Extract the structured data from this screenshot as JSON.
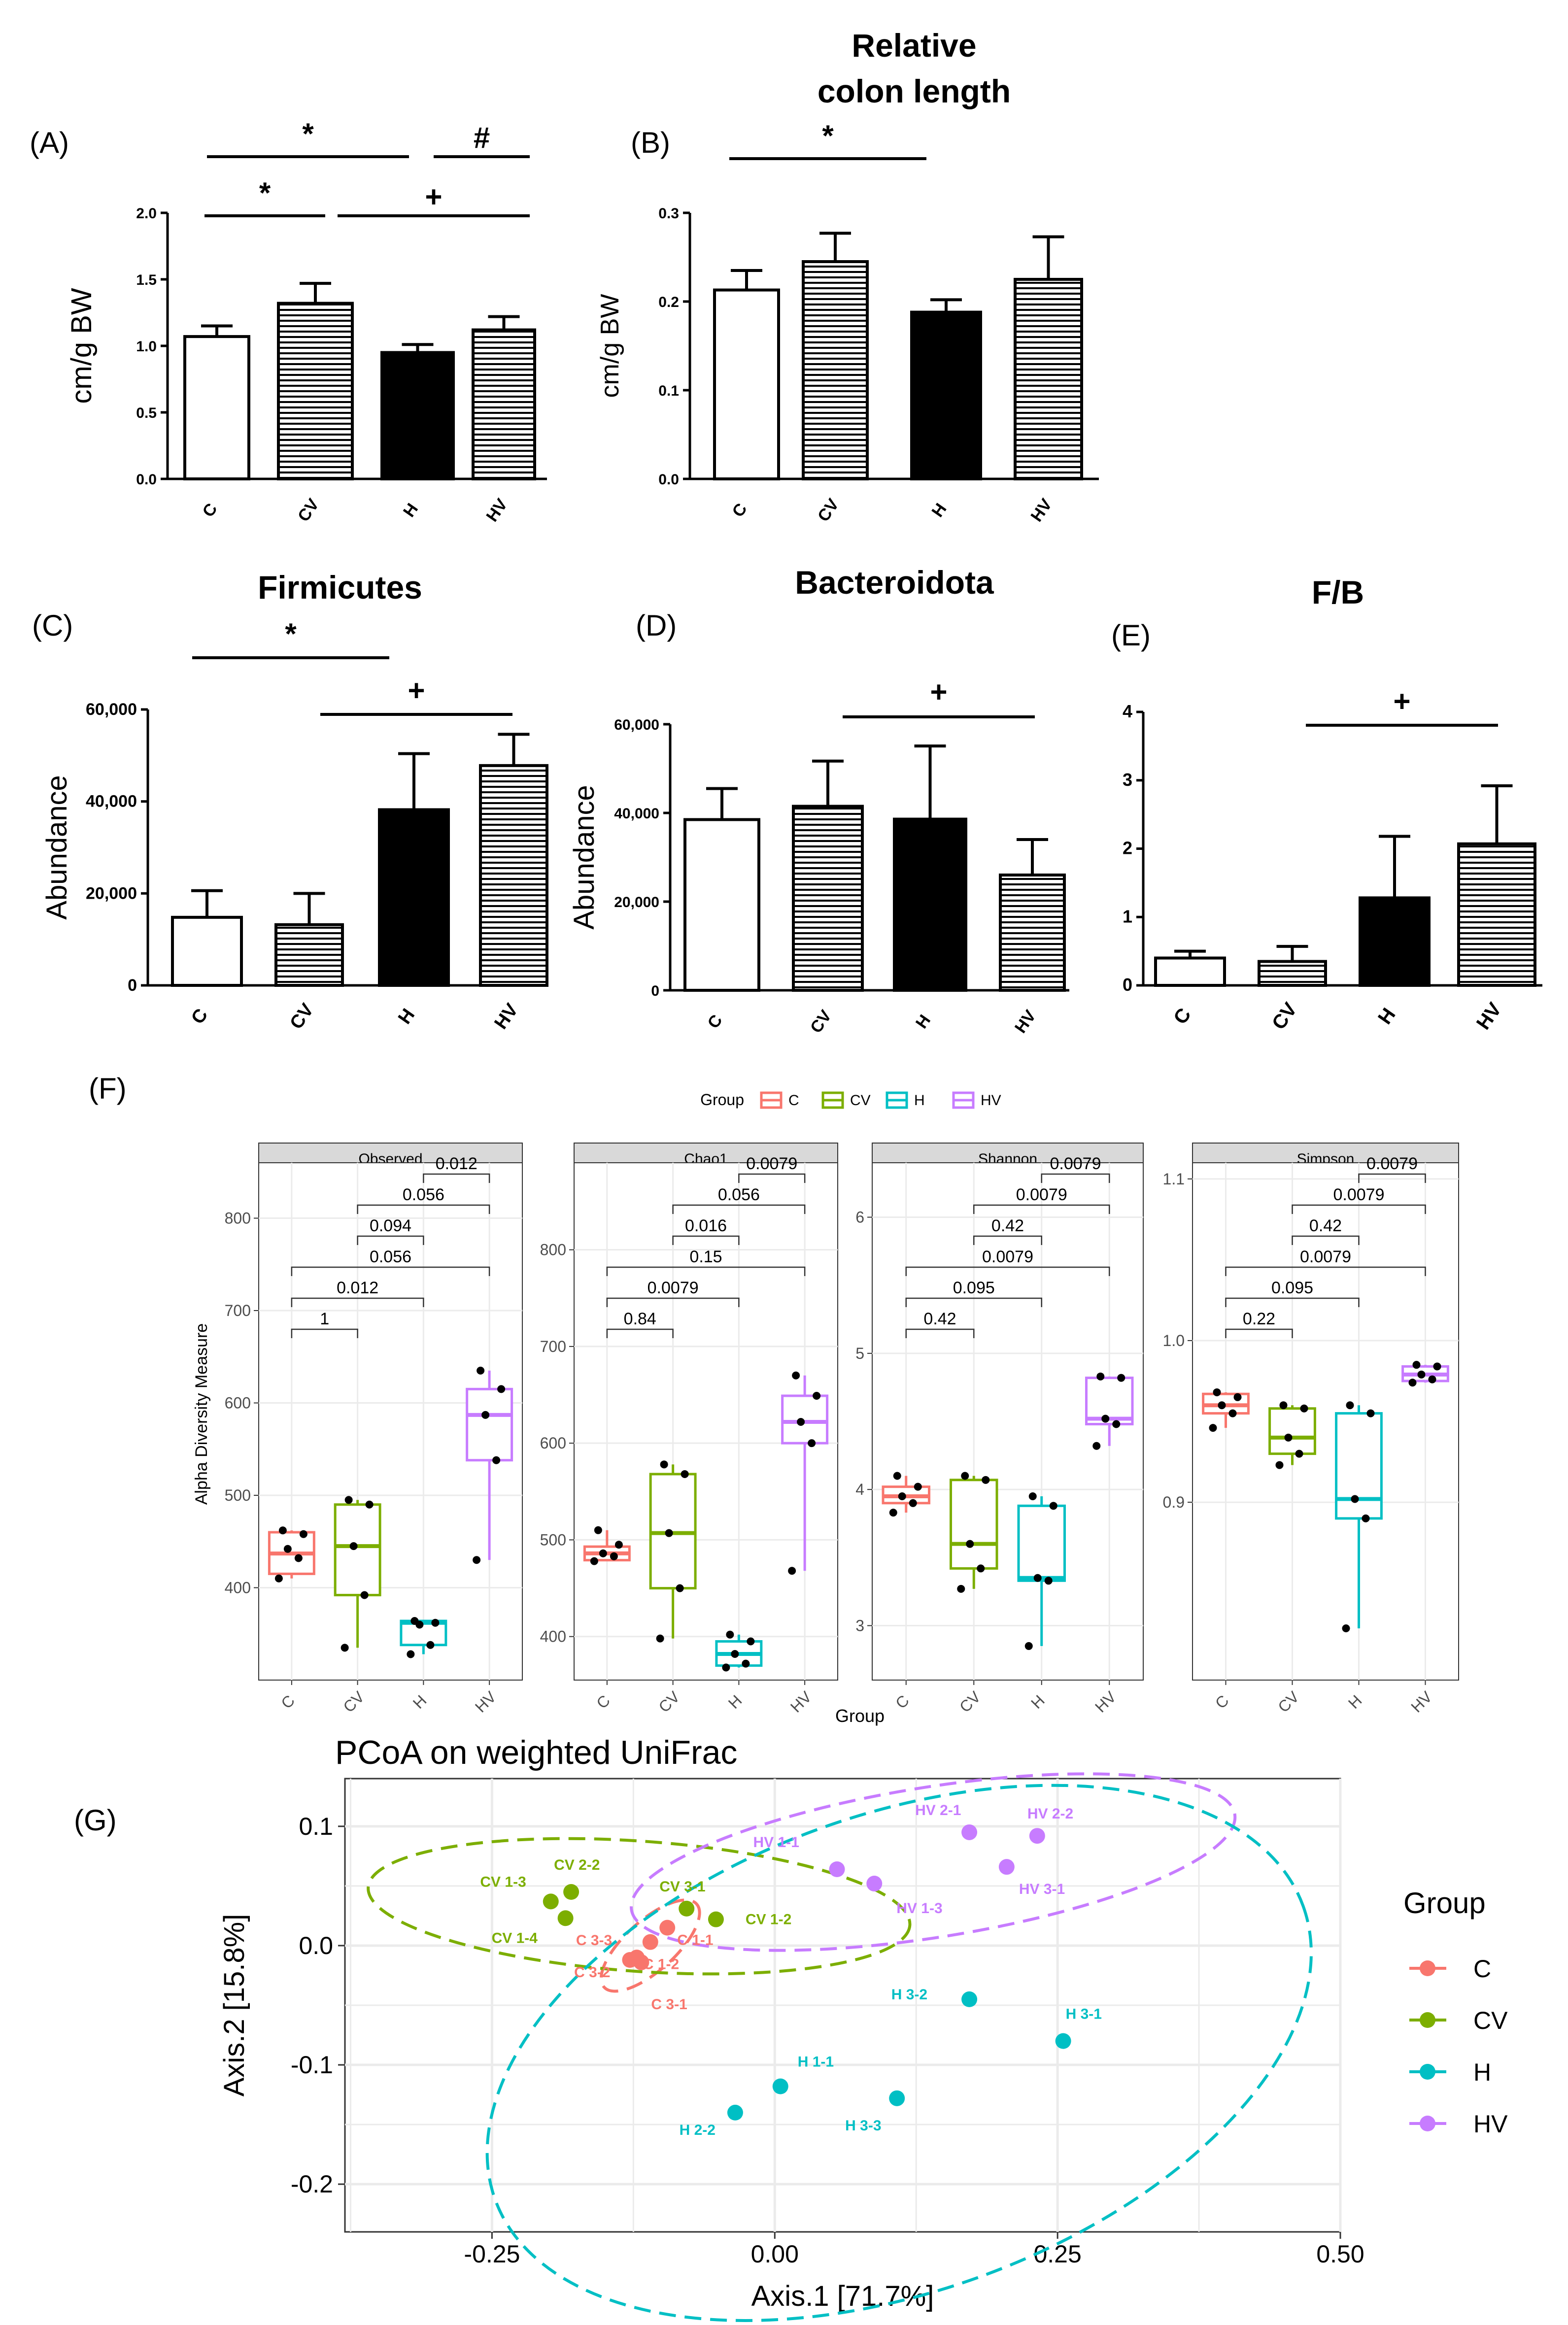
{
  "colors": {
    "C": "#F8766D",
    "CV": "#7CAE00",
    "H": "#00BFC4",
    "HV": "#C77CFF",
    "ink": "#000000",
    "strip": "#D9D9D9",
    "grid": "#EBEBEB"
  },
  "chart_data": [
    {
      "panel": "(A)",
      "type": "bar",
      "title": "",
      "xlabel": "",
      "ylabel": "cm/g BW",
      "categories": [
        "C",
        "CV",
        "H",
        "HV"
      ],
      "values": [
        1.07,
        1.32,
        0.95,
        1.12
      ],
      "errors": [
        0.08,
        0.15,
        0.06,
        0.1
      ],
      "patterns": [
        "open",
        "hstripe",
        "solid",
        "hstripe"
      ],
      "ylim": [
        0,
        2.0
      ],
      "yticks": [
        0.0,
        0.5,
        1.0,
        1.5,
        2.0
      ],
      "ytick_labels": [
        "0.0",
        "0.5",
        "1.0",
        "1.5",
        "2.0"
      ],
      "brackets": [
        {
          "from": "C",
          "to": "H",
          "label": "*"
        },
        {
          "from": "H",
          "to": "HV",
          "label": "#"
        },
        {
          "from": "C",
          "to": "CV",
          "label": "*"
        },
        {
          "from": "CV",
          "to": "HV",
          "label": "+"
        }
      ]
    },
    {
      "panel": "(B)",
      "type": "bar",
      "title": "Relative colon length",
      "title_lines": [
        "Relative",
        "colon length"
      ],
      "xlabel": "",
      "ylabel": "cm/g BW",
      "categories": [
        "C",
        "CV",
        "H",
        "HV"
      ],
      "values": [
        0.213,
        0.245,
        0.188,
        0.225
      ],
      "errors": [
        0.022,
        0.032,
        0.014,
        0.048
      ],
      "patterns": [
        "open",
        "hstripe",
        "solid",
        "hstripe"
      ],
      "ylim": [
        0,
        0.3
      ],
      "yticks": [
        0.0,
        0.1,
        0.2,
        0.3
      ],
      "ytick_labels": [
        "0.0",
        "0.1",
        "0.2",
        "0.3"
      ],
      "brackets": [
        {
          "from": "C",
          "to": "H",
          "label": "*"
        }
      ]
    },
    {
      "panel": "(C)",
      "type": "bar",
      "title": "Firmicutes",
      "xlabel": "",
      "ylabel": "Abundance",
      "categories": [
        "C",
        "CV",
        "H",
        "HV"
      ],
      "values": [
        14800,
        13200,
        38200,
        47800
      ],
      "errors": [
        5800,
        6800,
        12200,
        6800
      ],
      "patterns": [
        "open",
        "hstripe",
        "solid",
        "hstripe"
      ],
      "ylim": [
        0,
        60000
      ],
      "yticks": [
        0,
        20000,
        40000,
        60000
      ],
      "ytick_labels": [
        "0",
        "20,000",
        "40,000",
        "60,000"
      ],
      "brackets": [
        {
          "from": "C",
          "to": "H",
          "label": "*"
        },
        {
          "from": "CV",
          "to": "HV",
          "label": "+"
        }
      ]
    },
    {
      "panel": "(D)",
      "type": "bar",
      "title": "Bacteroidota",
      "xlabel": "",
      "ylabel": "Abundance",
      "categories": [
        "C",
        "CV",
        "H",
        "HV"
      ],
      "values": [
        38500,
        41500,
        38600,
        26000
      ],
      "errors": [
        7000,
        10200,
        16500,
        8000
      ],
      "patterns": [
        "open",
        "hstripe",
        "solid",
        "hstripe"
      ],
      "ylim": [
        0,
        60000
      ],
      "yticks": [
        0,
        20000,
        40000,
        60000
      ],
      "ytick_labels": [
        "0",
        "20,000",
        "40,000",
        "60,000"
      ],
      "brackets": [
        {
          "from": "CV",
          "to": "HV",
          "label": "+"
        }
      ]
    },
    {
      "panel": "(E)",
      "type": "bar",
      "title": "F/B",
      "xlabel": "",
      "ylabel": "",
      "categories": [
        "C",
        "CV",
        "H",
        "HV"
      ],
      "values": [
        0.4,
        0.35,
        1.28,
        2.07
      ],
      "errors": [
        0.1,
        0.22,
        0.9,
        0.85
      ],
      "patterns": [
        "open",
        "hstripe",
        "solid",
        "hstripe"
      ],
      "ylim": [
        0,
        4
      ],
      "yticks": [
        0,
        1,
        2,
        3,
        4
      ],
      "ytick_labels": [
        "0",
        "1",
        "2",
        "3",
        "4"
      ],
      "brackets": [
        {
          "from": "CV",
          "to": "HV",
          "label": "+"
        }
      ]
    },
    {
      "panel": "(F)",
      "type": "box",
      "xlabel": "Group",
      "ylabel": "Alpha Diversity Measure",
      "legend": {
        "title": "Group",
        "entries": [
          "C",
          "CV",
          "H",
          "HV"
        ],
        "placement": "top"
      },
      "categories": [
        "C",
        "CV",
        "H",
        "HV"
      ],
      "facets": [
        {
          "name": "Observed",
          "ylim": [
            300,
            860
          ],
          "yticks": [
            400,
            500,
            600,
            700,
            800
          ],
          "ytick_labels": [
            "400",
            "500",
            "600",
            "700",
            "800"
          ],
          "boxes": [
            {
              "group": "C",
              "q1": 415,
              "median": 437,
              "q3": 460,
              "min": 410,
              "max": 462,
              "points": [
                410,
                432,
                442,
                458,
                462
              ]
            },
            {
              "group": "CV",
              "q1": 392,
              "median": 445,
              "q3": 490,
              "min": 335,
              "max": 495,
              "points": [
                335,
                392,
                445,
                490,
                495
              ]
            },
            {
              "group": "H",
              "q1": 338,
              "median": 362,
              "q3": 364,
              "min": 328,
              "max": 364,
              "points": [
                328,
                338,
                360,
                362,
                364
              ]
            },
            {
              "group": "HV",
              "q1": 538,
              "median": 587,
              "q3": 615,
              "min": 430,
              "max": 635,
              "points": [
                430,
                538,
                587,
                615,
                635
              ]
            }
          ],
          "brackets": [
            {
              "from": "C",
              "to": "CV",
              "label": "1"
            },
            {
              "from": "C",
              "to": "H",
              "label": "0.012"
            },
            {
              "from": "C",
              "to": "HV",
              "label": "0.056"
            },
            {
              "from": "CV",
              "to": "H",
              "label": "0.094"
            },
            {
              "from": "CV",
              "to": "HV",
              "label": "0.056"
            },
            {
              "from": "H",
              "to": "HV",
              "label": "0.012"
            }
          ]
        },
        {
          "name": "Chao1",
          "ylim": [
            355,
            890
          ],
          "yticks": [
            400,
            500,
            600,
            700,
            800
          ],
          "ytick_labels": [
            "400",
            "500",
            "600",
            "700",
            "800"
          ],
          "boxes": [
            {
              "group": "C",
              "q1": 479,
              "median": 486,
              "q3": 493,
              "min": 478,
              "max": 510,
              "points": [
                478,
                483,
                486,
                495,
                510
              ]
            },
            {
              "group": "CV",
              "q1": 450,
              "median": 507,
              "q3": 568,
              "min": 398,
              "max": 578,
              "points": [
                398,
                450,
                507,
                568,
                578
              ]
            },
            {
              "group": "H",
              "q1": 370,
              "median": 382,
              "q3": 395,
              "min": 368,
              "max": 402,
              "points": [
                368,
                372,
                382,
                395,
                402
              ]
            },
            {
              "group": "HV",
              "q1": 600,
              "median": 622,
              "q3": 649,
              "min": 468,
              "max": 670,
              "points": [
                468,
                600,
                622,
                649,
                670
              ]
            }
          ],
          "brackets": [
            {
              "from": "C",
              "to": "CV",
              "label": "0.84"
            },
            {
              "from": "C",
              "to": "H",
              "label": "0.0079"
            },
            {
              "from": "C",
              "to": "HV",
              "label": "0.15"
            },
            {
              "from": "CV",
              "to": "H",
              "label": "0.016"
            },
            {
              "from": "CV",
              "to": "HV",
              "label": "0.056"
            },
            {
              "from": "H",
              "to": "HV",
              "label": "0.0079"
            }
          ]
        },
        {
          "name": "Shannon",
          "ylim": [
            2.6,
            6.4
          ],
          "yticks": [
            3,
            4,
            5,
            6
          ],
          "ytick_labels": [
            "3",
            "4",
            "5",
            "6"
          ],
          "boxes": [
            {
              "group": "C",
              "q1": 3.9,
              "median": 3.95,
              "q3": 4.02,
              "min": 3.83,
              "max": 4.1,
              "points": [
                3.83,
                3.9,
                3.95,
                4.02,
                4.1
              ]
            },
            {
              "group": "CV",
              "q1": 3.42,
              "median": 3.6,
              "q3": 4.07,
              "min": 3.27,
              "max": 4.1,
              "points": [
                3.27,
                3.42,
                3.6,
                4.07,
                4.1
              ]
            },
            {
              "group": "H",
              "q1": 3.33,
              "median": 3.35,
              "q3": 3.88,
              "min": 2.85,
              "max": 3.95,
              "points": [
                2.85,
                3.33,
                3.35,
                3.88,
                3.95
              ]
            },
            {
              "group": "HV",
              "q1": 4.48,
              "median": 4.52,
              "q3": 4.82,
              "min": 4.32,
              "max": 4.83,
              "points": [
                4.32,
                4.48,
                4.52,
                4.82,
                4.83
              ]
            }
          ],
          "brackets": [
            {
              "from": "C",
              "to": "CV",
              "label": "0.42"
            },
            {
              "from": "C",
              "to": "H",
              "label": "0.095"
            },
            {
              "from": "C",
              "to": "HV",
              "label": "0.0079"
            },
            {
              "from": "CV",
              "to": "H",
              "label": "0.42"
            },
            {
              "from": "CV",
              "to": "HV",
              "label": "0.0079"
            },
            {
              "from": "H",
              "to": "HV",
              "label": "0.0079"
            }
          ]
        },
        {
          "name": "Simpson",
          "ylim": [
            0.79,
            1.11
          ],
          "yticks": [
            0.9,
            1.0,
            1.1
          ],
          "ytick_labels": [
            "0.9",
            "1.0",
            "1.1"
          ],
          "boxes": [
            {
              "group": "C",
              "q1": 0.955,
              "median": 0.96,
              "q3": 0.967,
              "min": 0.946,
              "max": 0.968,
              "points": [
                0.946,
                0.955,
                0.96,
                0.965,
                0.968
              ]
            },
            {
              "group": "CV",
              "q1": 0.93,
              "median": 0.94,
              "q3": 0.958,
              "min": 0.923,
              "max": 0.96,
              "points": [
                0.923,
                0.93,
                0.94,
                0.958,
                0.96
              ]
            },
            {
              "group": "H",
              "q1": 0.89,
              "median": 0.902,
              "q3": 0.955,
              "min": 0.822,
              "max": 0.96,
              "points": [
                0.822,
                0.89,
                0.902,
                0.955,
                0.96
              ]
            },
            {
              "group": "HV",
              "q1": 0.975,
              "median": 0.979,
              "q3": 0.984,
              "min": 0.974,
              "max": 0.985,
              "points": [
                0.974,
                0.976,
                0.979,
                0.984,
                0.985
              ]
            }
          ],
          "brackets": [
            {
              "from": "C",
              "to": "CV",
              "label": "0.22"
            },
            {
              "from": "C",
              "to": "H",
              "label": "0.095"
            },
            {
              "from": "C",
              "to": "HV",
              "label": "0.0079"
            },
            {
              "from": "CV",
              "to": "H",
              "label": "0.42"
            },
            {
              "from": "CV",
              "to": "HV",
              "label": "0.0079"
            },
            {
              "from": "H",
              "to": "HV",
              "label": "0.0079"
            }
          ]
        }
      ]
    },
    {
      "panel": "(G)",
      "type": "scatter",
      "title": "PCoA on weighted UniFrac",
      "xlabel": "Axis.1   [71.7%]",
      "ylabel": "Axis.2   [15.8%]",
      "xlim": [
        -0.38,
        0.5
      ],
      "ylim": [
        -0.24,
        0.14
      ],
      "xticks": [
        -0.25,
        0.0,
        0.25,
        0.5
      ],
      "xtick_labels": [
        "-0.25",
        "0.00",
        "0.25",
        "0.50"
      ],
      "yticks": [
        -0.2,
        -0.1,
        0.0,
        0.1
      ],
      "ytick_labels": [
        "-0.2",
        "-0.1",
        "0.0",
        "0.1"
      ],
      "legend": {
        "title": "Group",
        "entries": [
          "C",
          "CV",
          "H",
          "HV"
        ],
        "placement": "right"
      },
      "points": [
        {
          "label": "C 1-1",
          "group": "C",
          "x": -0.095,
          "y": 0.015
        },
        {
          "label": "C 1-2",
          "group": "C",
          "x": -0.11,
          "y": 0.003
        },
        {
          "label": "C 3-3",
          "group": "C",
          "x": -0.122,
          "y": -0.01
        },
        {
          "label": "C 3-2",
          "group": "C",
          "x": -0.128,
          "y": -0.012
        },
        {
          "label": "C 3-1",
          "group": "C",
          "x": -0.118,
          "y": -0.014
        },
        {
          "label": "CV 1-2",
          "group": "CV",
          "x": -0.052,
          "y": 0.022
        },
        {
          "label": "CV 3-1",
          "group": "CV",
          "x": -0.078,
          "y": 0.031
        },
        {
          "label": "CV 2-2",
          "group": "CV",
          "x": -0.18,
          "y": 0.045
        },
        {
          "label": "CV 1-3",
          "group": "CV",
          "x": -0.198,
          "y": 0.037
        },
        {
          "label": "CV 1-4",
          "group": "CV",
          "x": -0.185,
          "y": 0.023
        },
        {
          "label": "HV 2-1",
          "group": "HV",
          "x": 0.172,
          "y": 0.095
        },
        {
          "label": "HV 2-2",
          "group": "HV",
          "x": 0.232,
          "y": 0.092
        },
        {
          "label": "HV 1-1",
          "group": "HV",
          "x": 0.055,
          "y": 0.064
        },
        {
          "label": "HV 1-3",
          "group": "HV",
          "x": 0.088,
          "y": 0.052
        },
        {
          "label": "HV 3-1",
          "group": "HV",
          "x": 0.205,
          "y": 0.066
        },
        {
          "label": "H 3-2",
          "group": "H",
          "x": 0.172,
          "y": -0.045
        },
        {
          "label": "H 3-1",
          "group": "H",
          "x": 0.255,
          "y": -0.08
        },
        {
          "label": "H 1-1",
          "group": "H",
          "x": 0.005,
          "y": -0.118
        },
        {
          "label": "H 2-2",
          "group": "H",
          "x": -0.035,
          "y": -0.14
        },
        {
          "label": "H 3-3",
          "group": "H",
          "x": 0.108,
          "y": -0.128
        }
      ],
      "ellipses": [
        {
          "group": "C",
          "cx": -0.11,
          "cy": 0.0,
          "rx": 0.055,
          "ry": 0.01,
          "angle": 42
        },
        {
          "group": "CV",
          "cx": -0.12,
          "cy": 0.033,
          "rx": 0.24,
          "ry": 0.026,
          "angle": -4
        },
        {
          "group": "HV",
          "cx": 0.14,
          "cy": 0.07,
          "rx": 0.27,
          "ry": 0.03,
          "angle": 9
        },
        {
          "group": "H",
          "cx": 0.11,
          "cy": -0.09,
          "rx": 0.38,
          "ry": 0.095,
          "angle": 20
        }
      ]
    }
  ]
}
